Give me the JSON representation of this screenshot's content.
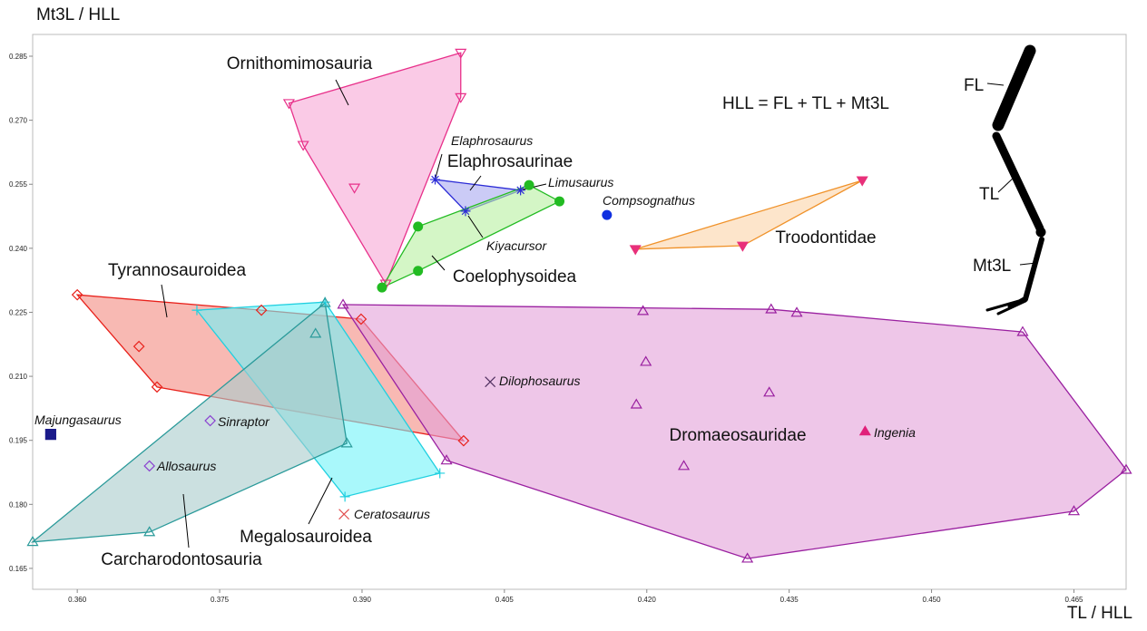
{
  "chart_data": {
    "type": "scatter",
    "x_label": "TL / HLL",
    "y_label": "Mt3L / HLL",
    "annotation": "HLL = FL + TL + Mt3L",
    "leg_labels": [
      "FL",
      "TL",
      "Mt3L"
    ],
    "xlim": [
      0.3553,
      0.4705
    ],
    "ylim": [
      0.1601,
      0.2901
    ],
    "xticks": [
      {
        "value": 0.36,
        "label": "0.360"
      },
      0.375,
      {
        "value": 0.39,
        "label": "0.390"
      },
      0.405,
      {
        "value": 0.42,
        "label": "0.420"
      },
      0.435,
      {
        "value": 0.45,
        "label": "0.450"
      },
      0.465
    ],
    "yticks": [
      0.165,
      {
        "value": 0.18,
        "label": "0.180"
      },
      0.195,
      {
        "value": 0.21,
        "label": "0.210"
      },
      0.225,
      {
        "value": 0.24,
        "label": "0.240"
      },
      0.255,
      {
        "value": 0.27,
        "label": "0.270"
      },
      0.285
    ],
    "series": [
      {
        "name": "Ornithomimosauria",
        "color": "#e8308a",
        "fill": "#f7a6d6",
        "marker": "tri-down",
        "x": [
          0.3823,
          0.4004,
          0.4004,
          0.3838,
          0.3892,
          0.3925
        ],
        "y": [
          0.274,
          0.2858,
          0.2754,
          0.2642,
          0.2542,
          0.2317
        ]
      },
      {
        "name": "Elaphrosaurinae",
        "color": "#2b2bd6",
        "fill": "#a8a8f0",
        "marker": "asterisk",
        "x": [
          0.3977,
          0.4067,
          0.4009
        ],
        "y": [
          0.2561,
          0.2536,
          0.2487
        ],
        "point_labels": [
          "Elaphrosaurus",
          "Limusaurus",
          "Kiyacursor"
        ]
      },
      {
        "name": "Coelophysoidea",
        "color": "#22bb22",
        "fill": "#b8f0a0",
        "marker": "circle",
        "x": [
          0.3921,
          0.3959,
          0.3959,
          0.4076,
          0.4108
        ],
        "y": [
          0.2308,
          0.2451,
          0.2347,
          0.2548,
          0.251
        ]
      },
      {
        "name": "Compsognathus",
        "color": "#1030e0",
        "marker": "circle",
        "x": [
          0.4158
        ],
        "y": [
          0.2478
        ]
      },
      {
        "name": "Troodontidae",
        "color": "#f0922a",
        "fill": "#fcd3a8",
        "marker": "tri-down-filled",
        "marker_color": "#e8307a",
        "x": [
          0.4188,
          0.4301,
          0.4427
        ],
        "y": [
          0.2398,
          0.2406,
          0.2559
        ]
      },
      {
        "name": "Tyrannosauroidea",
        "color": "#e8201a",
        "fill": "#f48a80",
        "marker": "diamond",
        "x": [
          0.36,
          0.3794,
          0.3899,
          0.3665,
          0.3684,
          0.4007
        ],
        "y": [
          0.2291,
          0.2255,
          0.2234,
          0.217,
          0.2075,
          0.1949
        ]
      },
      {
        "name": "Megalosauroidea",
        "color": "#20d0e0",
        "fill": "#70f4f8",
        "marker": "plus",
        "x": [
          0.3726,
          0.3861,
          0.3982,
          0.3882
        ],
        "y": [
          0.2255,
          0.2274,
          0.1873,
          0.1818
        ]
      },
      {
        "name": "Carcharodontosauria",
        "color": "#2a9a9a",
        "fill": "#a8cccc",
        "marker": "tri-up",
        "x": [
          0.3553,
          0.3861,
          0.3884,
          0.3676,
          0.3851
        ],
        "y": [
          0.1712,
          0.2272,
          0.1943,
          0.1735,
          0.22
        ]
      },
      {
        "name": "Dromaeosauridae",
        "color": "#9a20a0",
        "fill": "#e2a0d8",
        "marker": "tri-up",
        "x": [
          0.388,
          0.4196,
          0.4331,
          0.4358,
          0.4596,
          0.4705,
          0.465,
          0.4306,
          0.3989,
          0.4199,
          0.4189,
          0.4239,
          0.4329
        ],
        "y": [
          0.2268,
          0.2253,
          0.2257,
          0.2249,
          0.2204,
          0.1881,
          0.1784,
          0.1673,
          0.1903,
          0.2134,
          0.2034,
          0.189,
          0.2062
        ]
      },
      {
        "name": "Majungasaurus",
        "color": "#1a1a8a",
        "marker": "square",
        "x": [
          0.3572
        ],
        "y": [
          0.1964
        ]
      },
      {
        "name": "Allosaurus",
        "color": "#8a40d0",
        "marker": "diamond",
        "x": [
          0.3676
        ],
        "y": [
          0.189
        ]
      },
      {
        "name": "Sinraptor",
        "color": "#8a40d0",
        "marker": "diamond",
        "x": [
          0.374
        ],
        "y": [
          0.1996
        ]
      },
      {
        "name": "Ceratosaurus",
        "color": "#e05050",
        "marker": "cross",
        "x": [
          0.3881
        ],
        "y": [
          0.1777
        ]
      },
      {
        "name": "Dilophosaurus",
        "color": "#503060",
        "marker": "cross",
        "x": [
          0.4035
        ],
        "y": [
          0.2087
        ]
      },
      {
        "name": "Ingenia",
        "color": "#e0207a",
        "marker": "tri-up-filled",
        "x": [
          0.443
        ],
        "y": [
          0.1971
        ]
      }
    ]
  }
}
